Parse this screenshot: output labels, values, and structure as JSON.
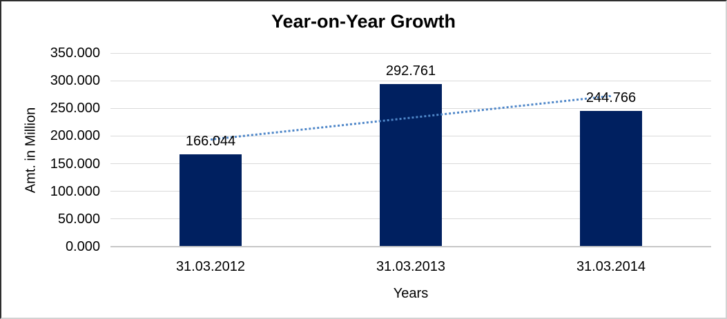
{
  "chart_data": {
    "type": "bar",
    "title": "Year-on-Year Growth",
    "categories": [
      "31.03.2012",
      "31.03.2013",
      "31.03.2014"
    ],
    "values": [
      166.044,
      292.761,
      244.766
    ],
    "data_labels": [
      "166.044",
      "292.761",
      "244.766"
    ],
    "xlabel": "Years",
    "ylabel": "Amt. in Million",
    "ylim": [
      0,
      350
    ],
    "ytick_step": 50,
    "ytick_labels": [
      "0.000",
      "50.000",
      "100.000",
      "150.000",
      "200.000",
      "250.000",
      "300.000",
      "350.000"
    ],
    "grid": true,
    "legend": "none",
    "bar_color": "#002060",
    "gridline_color": "#D9D9D9",
    "axis_line_color": "#C6C6C6",
    "text_color": "#000000",
    "trendline": {
      "type": "linear",
      "style": "dotted",
      "color": "#4E86C8",
      "start_value": 195.2,
      "end_value": 273.9
    }
  }
}
